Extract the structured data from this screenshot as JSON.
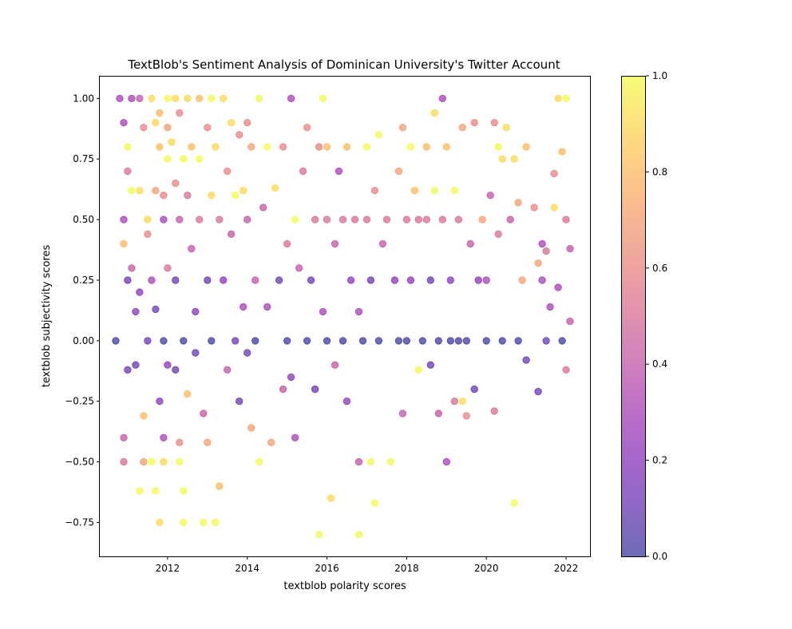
{
  "chart_data": {
    "type": "scatter",
    "title": "TextBlob's Sentiment Analysis of Dominican University's Twitter Account",
    "xlabel": "textblob polarity scores",
    "ylabel": "textblob subjectivity scores",
    "xlim": [
      2010.3,
      2022.6
    ],
    "ylim": [
      -0.89,
      1.09
    ],
    "x_ticks": [
      2012,
      2014,
      2016,
      2018,
      2020,
      2022
    ],
    "x_tick_labels": [
      "2012",
      "2014",
      "2016",
      "2018",
      "2020",
      "2022"
    ],
    "y_ticks": [
      -0.75,
      -0.5,
      -0.25,
      0.0,
      0.25,
      0.5,
      0.75,
      1.0
    ],
    "y_tick_labels": [
      "−0.75",
      "−0.50",
      "−0.25",
      "0.00",
      "0.25",
      "0.50",
      "0.75",
      "1.00"
    ],
    "colorbar": {
      "colormap": "plasma",
      "range": [
        0.0,
        1.0
      ],
      "ticks": [
        0.0,
        0.2,
        0.4,
        0.6,
        0.8,
        1.0
      ],
      "tick_labels": [
        "0.0",
        "0.2",
        "0.4",
        "0.6",
        "0.8",
        "1.0"
      ]
    },
    "marker_alpha": 0.6,
    "grid": false,
    "points": [
      [
        2010.7,
        0.0,
        0.0
      ],
      [
        2010.8,
        1.0,
        0.3
      ],
      [
        2010.9,
        0.9,
        0.3
      ],
      [
        2010.9,
        0.5,
        0.3
      ],
      [
        2010.9,
        0.4,
        0.8
      ],
      [
        2010.9,
        -0.4,
        0.4
      ],
      [
        2010.9,
        -0.5,
        0.5
      ],
      [
        2011.0,
        0.8,
        1.0
      ],
      [
        2011.0,
        0.7,
        0.5
      ],
      [
        2011.0,
        0.25,
        0.1
      ],
      [
        2011.0,
        -0.12,
        0.1
      ],
      [
        2011.1,
        1.0,
        0.3
      ],
      [
        2011.1,
        0.62,
        1.0
      ],
      [
        2011.1,
        0.3,
        0.4
      ],
      [
        2011.2,
        0.12,
        0.2
      ],
      [
        2011.2,
        -0.1,
        0.1
      ],
      [
        2011.3,
        1.0,
        0.4
      ],
      [
        2011.3,
        0.62,
        0.9
      ],
      [
        2011.3,
        0.2,
        0.2
      ],
      [
        2011.3,
        -0.62,
        1.0
      ],
      [
        2011.4,
        0.88,
        0.6
      ],
      [
        2011.4,
        -0.31,
        0.8
      ],
      [
        2011.4,
        -0.5,
        0.7
      ],
      [
        2011.5,
        0.5,
        0.9
      ],
      [
        2011.5,
        0.44,
        0.6
      ],
      [
        2011.5,
        0.0,
        0.1
      ],
      [
        2011.6,
        1.0,
        0.9
      ],
      [
        2011.6,
        0.25,
        0.3
      ],
      [
        2011.6,
        -0.5,
        1.0
      ],
      [
        2011.7,
        0.9,
        0.9
      ],
      [
        2011.7,
        0.62,
        0.7
      ],
      [
        2011.7,
        0.13,
        0.1
      ],
      [
        2011.7,
        -0.62,
        1.0
      ],
      [
        2011.8,
        0.94,
        0.8
      ],
      [
        2011.8,
        0.8,
        0.8
      ],
      [
        2011.8,
        -0.25,
        0.2
      ],
      [
        2011.8,
        -0.75,
        0.9
      ],
      [
        2011.9,
        0.6,
        0.6
      ],
      [
        2011.9,
        0.5,
        0.3
      ],
      [
        2011.9,
        0.0,
        0.0
      ],
      [
        2011.9,
        -0.4,
        0.3
      ],
      [
        2011.9,
        -0.5,
        0.9
      ],
      [
        2012.0,
        1.0,
        1.0
      ],
      [
        2012.0,
        0.88,
        0.7
      ],
      [
        2012.0,
        0.75,
        1.0
      ],
      [
        2012.0,
        0.3,
        0.5
      ],
      [
        2012.0,
        -0.1,
        0.2
      ],
      [
        2012.1,
        0.82,
        0.9
      ],
      [
        2012.2,
        1.0,
        0.9
      ],
      [
        2012.2,
        0.65,
        0.6
      ],
      [
        2012.2,
        0.25,
        0.1
      ],
      [
        2012.2,
        -0.12,
        0.1
      ],
      [
        2012.3,
        0.94,
        0.6
      ],
      [
        2012.3,
        0.5,
        0.4
      ],
      [
        2012.3,
        -0.42,
        0.6
      ],
      [
        2012.3,
        -0.5,
        1.0
      ],
      [
        2012.4,
        0.75,
        1.0
      ],
      [
        2012.4,
        0.0,
        0.0
      ],
      [
        2012.4,
        -0.62,
        1.0
      ],
      [
        2012.4,
        -0.75,
        1.0
      ],
      [
        2012.5,
        1.0,
        0.9
      ],
      [
        2012.5,
        0.6,
        0.5
      ],
      [
        2012.5,
        -0.22,
        0.8
      ],
      [
        2012.6,
        0.8,
        0.8
      ],
      [
        2012.6,
        0.38,
        0.4
      ],
      [
        2012.7,
        0.12,
        0.2
      ],
      [
        2012.7,
        -0.05,
        0.1
      ],
      [
        2012.8,
        1.0,
        0.8
      ],
      [
        2012.8,
        0.75,
        1.0
      ],
      [
        2012.8,
        0.5,
        0.5
      ],
      [
        2012.9,
        -0.3,
        0.4
      ],
      [
        2012.9,
        -0.75,
        1.0
      ],
      [
        2013.0,
        0.88,
        0.6
      ],
      [
        2013.0,
        0.25,
        0.1
      ],
      [
        2013.0,
        -0.42,
        0.7
      ],
      [
        2013.1,
        1.0,
        1.0
      ],
      [
        2013.1,
        0.6,
        0.9
      ],
      [
        2013.1,
        0.0,
        0.0
      ],
      [
        2013.2,
        0.8,
        0.9
      ],
      [
        2013.2,
        -0.75,
        1.0
      ],
      [
        2013.3,
        0.5,
        0.5
      ],
      [
        2013.3,
        -0.6,
        0.8
      ],
      [
        2013.4,
        1.0,
        0.9
      ],
      [
        2013.4,
        0.25,
        0.2
      ],
      [
        2013.5,
        0.7,
        0.6
      ],
      [
        2013.5,
        -0.12,
        0.4
      ],
      [
        2013.6,
        0.9,
        0.9
      ],
      [
        2013.6,
        0.44,
        0.4
      ],
      [
        2013.7,
        0.6,
        1.0
      ],
      [
        2013.7,
        0.0,
        0.1
      ],
      [
        2013.8,
        0.85,
        0.6
      ],
      [
        2013.8,
        -0.25,
        0.1
      ],
      [
        2013.9,
        0.62,
        0.9
      ],
      [
        2013.9,
        0.14,
        0.3
      ],
      [
        2014.0,
        0.9,
        0.6
      ],
      [
        2014.0,
        0.5,
        0.4
      ],
      [
        2014.0,
        -0.05,
        0.1
      ],
      [
        2014.1,
        0.8,
        0.7
      ],
      [
        2014.1,
        -0.36,
        0.7
      ],
      [
        2014.2,
        0.25,
        0.4
      ],
      [
        2014.2,
        0.0,
        0.0
      ],
      [
        2014.3,
        1.0,
        1.0
      ],
      [
        2014.3,
        -0.5,
        1.0
      ],
      [
        2014.4,
        0.55,
        0.4
      ],
      [
        2014.5,
        0.8,
        1.0
      ],
      [
        2014.5,
        0.14,
        0.3
      ],
      [
        2014.6,
        -0.42,
        0.7
      ],
      [
        2014.7,
        0.63,
        0.9
      ],
      [
        2014.8,
        0.25,
        0.1
      ],
      [
        2014.9,
        0.8,
        0.6
      ],
      [
        2014.9,
        -0.2,
        0.4
      ],
      [
        2015.0,
        0.4,
        0.5
      ],
      [
        2015.0,
        0.0,
        0.0
      ],
      [
        2015.1,
        1.0,
        0.3
      ],
      [
        2015.1,
        -0.15,
        0.2
      ],
      [
        2015.2,
        0.5,
        1.0
      ],
      [
        2015.2,
        -0.4,
        0.3
      ],
      [
        2015.3,
        0.3,
        0.4
      ],
      [
        2015.4,
        0.7,
        0.5
      ],
      [
        2015.5,
        0.88,
        0.6
      ],
      [
        2015.5,
        0.0,
        0.0
      ],
      [
        2015.6,
        0.25,
        0.1
      ],
      [
        2015.7,
        0.5,
        0.5
      ],
      [
        2015.7,
        -0.2,
        0.1
      ],
      [
        2015.8,
        0.8,
        0.6
      ],
      [
        2015.8,
        -0.8,
        1.0
      ],
      [
        2015.9,
        1.0,
        1.0
      ],
      [
        2015.9,
        0.12,
        0.3
      ],
      [
        2016.0,
        0.8,
        0.8
      ],
      [
        2016.0,
        0.5,
        0.5
      ],
      [
        2016.0,
        0.0,
        0.0
      ],
      [
        2016.1,
        -0.65,
        0.9
      ],
      [
        2016.2,
        0.4,
        0.4
      ],
      [
        2016.2,
        -0.1,
        0.4
      ],
      [
        2016.3,
        0.7,
        0.3
      ],
      [
        2016.4,
        0.5,
        0.5
      ],
      [
        2016.4,
        0.0,
        0.0
      ],
      [
        2016.5,
        0.8,
        0.8
      ],
      [
        2016.5,
        -0.25,
        0.2
      ],
      [
        2016.6,
        0.25,
        0.2
      ],
      [
        2016.7,
        0.5,
        0.5
      ],
      [
        2016.8,
        0.12,
        0.3
      ],
      [
        2016.8,
        -0.5,
        0.4
      ],
      [
        2016.8,
        -0.8,
        1.0
      ],
      [
        2016.9,
        0.0,
        0.0
      ],
      [
        2017.0,
        0.8,
        1.0
      ],
      [
        2017.0,
        0.5,
        0.5
      ],
      [
        2017.1,
        0.25,
        0.1
      ],
      [
        2017.1,
        -0.5,
        1.0
      ],
      [
        2017.2,
        0.62,
        0.6
      ],
      [
        2017.2,
        -0.67,
        1.0
      ],
      [
        2017.3,
        0.85,
        1.0
      ],
      [
        2017.3,
        0.0,
        0.0
      ],
      [
        2017.4,
        0.4,
        0.4
      ],
      [
        2017.5,
        0.5,
        0.5
      ],
      [
        2017.6,
        -0.5,
        1.0
      ],
      [
        2017.7,
        0.25,
        0.2
      ],
      [
        2017.8,
        0.7,
        0.7
      ],
      [
        2017.8,
        0.0,
        0.0
      ],
      [
        2017.9,
        0.88,
        0.7
      ],
      [
        2017.9,
        -0.3,
        0.4
      ],
      [
        2018.0,
        0.5,
        0.5
      ],
      [
        2018.0,
        0.0,
        0.0
      ],
      [
        2018.1,
        0.8,
        1.0
      ],
      [
        2018.1,
        0.25,
        0.2
      ],
      [
        2018.2,
        0.62,
        0.8
      ],
      [
        2018.3,
        0.5,
        0.5
      ],
      [
        2018.3,
        -0.12,
        1.0
      ],
      [
        2018.4,
        0.0,
        0.0
      ],
      [
        2018.5,
        0.8,
        0.8
      ],
      [
        2018.5,
        0.5,
        0.5
      ],
      [
        2018.6,
        0.25,
        0.1
      ],
      [
        2018.6,
        -0.1,
        0.1
      ],
      [
        2018.7,
        0.94,
        0.9
      ],
      [
        2018.7,
        0.62,
        1.0
      ],
      [
        2018.8,
        0.0,
        0.0
      ],
      [
        2018.8,
        -0.3,
        0.4
      ],
      [
        2018.9,
        1.0,
        0.3
      ],
      [
        2018.9,
        0.5,
        0.5
      ],
      [
        2019.0,
        0.8,
        0.8
      ],
      [
        2019.0,
        -0.5,
        0.3
      ],
      [
        2019.1,
        0.25,
        0.2
      ],
      [
        2019.1,
        0.0,
        0.0
      ],
      [
        2019.2,
        0.62,
        1.0
      ],
      [
        2019.2,
        -0.25,
        0.5
      ],
      [
        2019.3,
        0.5,
        0.5
      ],
      [
        2019.3,
        0.0,
        0.0
      ],
      [
        2019.4,
        0.88,
        0.7
      ],
      [
        2019.4,
        -0.25,
        0.9
      ],
      [
        2019.5,
        0.0,
        0.0
      ],
      [
        2019.5,
        -0.31,
        0.6
      ],
      [
        2019.6,
        0.4,
        0.4
      ],
      [
        2019.7,
        0.9,
        0.6
      ],
      [
        2019.7,
        -0.2,
        0.1
      ],
      [
        2019.8,
        0.25,
        0.2
      ],
      [
        2019.9,
        0.5,
        0.7
      ],
      [
        2020.0,
        0.25,
        0.3
      ],
      [
        2020.0,
        0.0,
        0.0
      ],
      [
        2020.1,
        0.6,
        0.4
      ],
      [
        2020.2,
        0.9,
        0.6
      ],
      [
        2020.2,
        -0.29,
        0.5
      ],
      [
        2020.3,
        0.8,
        1.0
      ],
      [
        2020.3,
        0.44,
        0.5
      ],
      [
        2020.4,
        0.75,
        0.9
      ],
      [
        2020.4,
        0.0,
        0.0
      ],
      [
        2020.5,
        0.88,
        0.9
      ],
      [
        2020.6,
        0.5,
        0.4
      ],
      [
        2020.7,
        0.75,
        0.9
      ],
      [
        2020.7,
        -0.67,
        1.0
      ],
      [
        2020.8,
        0.57,
        0.7
      ],
      [
        2020.8,
        0.0,
        0.0
      ],
      [
        2020.9,
        0.25,
        0.7
      ],
      [
        2021.0,
        0.8,
        0.8
      ],
      [
        2021.0,
        -0.08,
        0.1
      ],
      [
        2021.2,
        0.55,
        0.6
      ],
      [
        2021.3,
        0.32,
        0.7
      ],
      [
        2021.3,
        -0.21,
        0.1
      ],
      [
        2021.4,
        0.4,
        0.3
      ],
      [
        2021.4,
        0.25,
        0.3
      ],
      [
        2021.5,
        0.37,
        0.5
      ],
      [
        2021.5,
        0.0,
        0.1
      ],
      [
        2021.6,
        0.14,
        0.3
      ],
      [
        2021.7,
        0.69,
        0.6
      ],
      [
        2021.7,
        0.55,
        0.9
      ],
      [
        2021.8,
        1.0,
        0.9
      ],
      [
        2021.8,
        0.22,
        0.3
      ],
      [
        2021.9,
        0.78,
        0.8
      ],
      [
        2021.9,
        0.0,
        0.0
      ],
      [
        2022.0,
        1.0,
        1.0
      ],
      [
        2022.0,
        0.5,
        0.5
      ],
      [
        2022.0,
        -0.12,
        0.5
      ],
      [
        2022.1,
        0.38,
        0.4
      ],
      [
        2022.1,
        0.08,
        0.4
      ]
    ]
  }
}
